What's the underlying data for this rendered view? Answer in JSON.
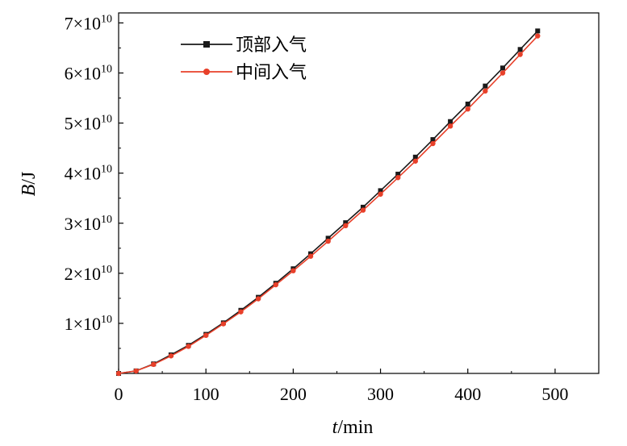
{
  "chart_data": {
    "type": "line",
    "xlabel_italic": "t",
    "xlabel_rest": "/min",
    "ylabel_italic": "B",
    "ylabel_rest": "/J",
    "xlim": [
      0,
      550
    ],
    "ylim": [
      0,
      72000000000.0
    ],
    "x_ticks": [
      {
        "value": 0,
        "label": "0"
      },
      {
        "value": 100,
        "label": "100"
      },
      {
        "value": 200,
        "label": "200"
      },
      {
        "value": 300,
        "label": "300"
      },
      {
        "value": 400,
        "label": "400"
      },
      {
        "value": 500,
        "label": "500"
      }
    ],
    "y_ticks": [
      {
        "value": 10000000000.0,
        "mantissa": "1×10",
        "exp": "10"
      },
      {
        "value": 20000000000.0,
        "mantissa": "2×10",
        "exp": "10"
      },
      {
        "value": 30000000000.0,
        "mantissa": "3×10",
        "exp": "10"
      },
      {
        "value": 40000000000.0,
        "mantissa": "4×10",
        "exp": "10"
      },
      {
        "value": 50000000000.0,
        "mantissa": "5×10",
        "exp": "10"
      },
      {
        "value": 60000000000.0,
        "mantissa": "6×10",
        "exp": "10"
      },
      {
        "value": 70000000000.0,
        "mantissa": "7×10",
        "exp": "10"
      }
    ],
    "legend_position": "top-left",
    "grid": false,
    "x": [
      0,
      20,
      40,
      60,
      80,
      100,
      120,
      140,
      160,
      180,
      200,
      220,
      240,
      260,
      280,
      300,
      320,
      340,
      360,
      380,
      400,
      420,
      440,
      460,
      480
    ],
    "series": [
      {
        "name": "顶部入气",
        "color": "#1a1a1a",
        "marker": "square",
        "values": [
          0,
          500000000.0,
          1900000000.0,
          3700000000.0,
          5600000000.0,
          7800000000.0,
          10100000000.0,
          12600000000.0,
          15200000000.0,
          18000000000.0,
          20900000000.0,
          23900000000.0,
          27000000000.0,
          30100000000.0,
          33200000000.0,
          36500000000.0,
          39800000000.0,
          43200000000.0,
          46700000000.0,
          50300000000.0,
          53800000000.0,
          57400000000.0,
          61000000000.0,
          64700000000.0,
          68400000000.0
        ]
      },
      {
        "name": "中间入气",
        "color": "#e8402a",
        "marker": "circle",
        "values": [
          0,
          500000000.0,
          1800000000.0,
          3500000000.0,
          5400000000.0,
          7600000000.0,
          9900000000.0,
          12300000000.0,
          14900000000.0,
          17700000000.0,
          20500000000.0,
          23400000000.0,
          26400000000.0,
          29500000000.0,
          32600000000.0,
          35800000000.0,
          39100000000.0,
          42400000000.0,
          45900000000.0,
          49400000000.0,
          52800000000.0,
          56400000000.0,
          60000000000.0,
          63700000000.0,
          67400000000.0
        ]
      }
    ]
  }
}
